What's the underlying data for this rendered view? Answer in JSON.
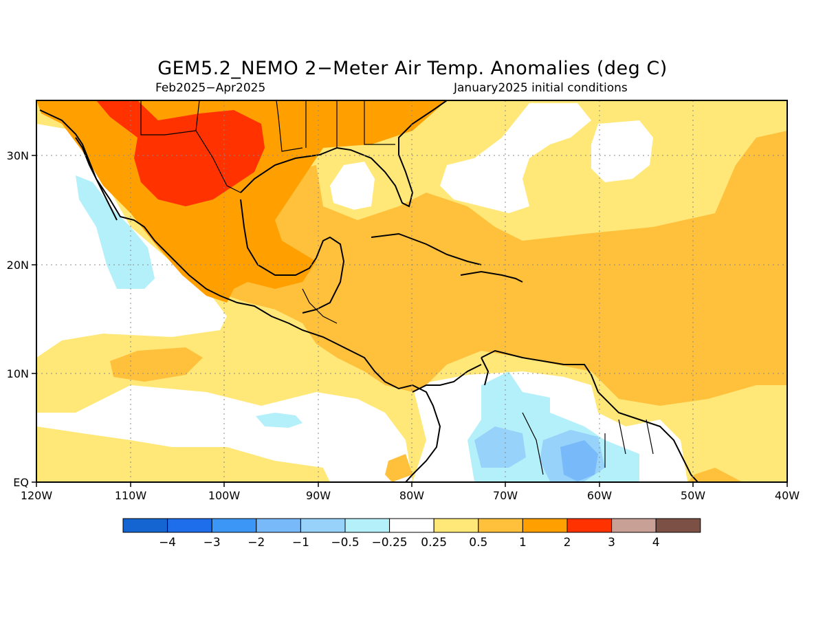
{
  "map": {
    "title": "GEM5.2_NEMO 2−Meter Air Temp. Anomalies (deg C)",
    "period": "Feb2025−Apr2025",
    "init": "January2025 initial conditions",
    "lon_labels": [
      "120W",
      "110W",
      "100W",
      "90W",
      "80W",
      "70W",
      "60W",
      "50W",
      "40W"
    ],
    "lat_labels": [
      "EQ",
      "10N",
      "20N",
      "30N"
    ]
  },
  "colorbar": {
    "colors": [
      "#1464d2",
      "#1e6eeb",
      "#3c96f5",
      "#78b9fa",
      "#96d2fa",
      "#b4f0fa",
      "#ffffff",
      "#ffe878",
      "#ffc03c",
      "#ffa000",
      "#ff3200",
      "#c8a096",
      "#7d5046"
    ],
    "labels": [
      "−4",
      "−3",
      "−2",
      "−1",
      "−0.5",
      "−0.25",
      "0.25",
      "0.5",
      "1",
      "2",
      "3",
      "4"
    ]
  }
}
